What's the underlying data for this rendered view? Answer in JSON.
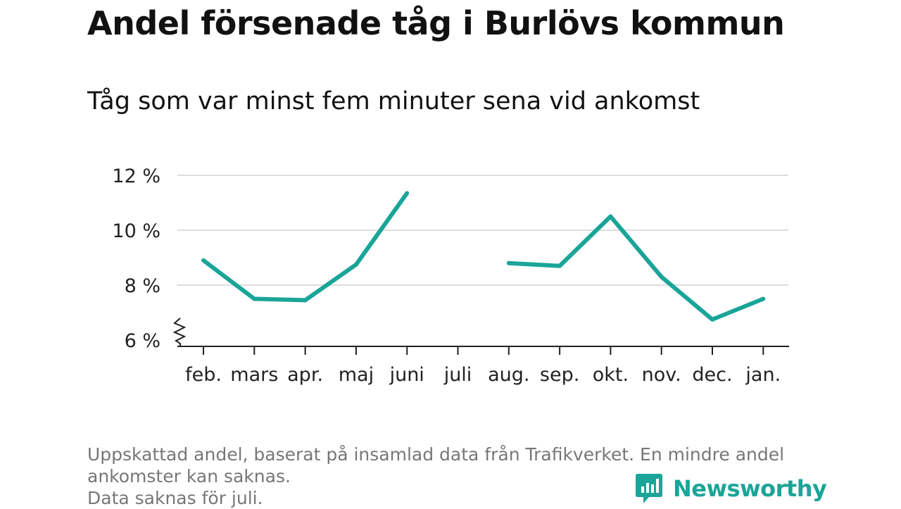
{
  "title": "Andel försenade tåg i Burlövs kommun",
  "subtitle": "Tåg som var minst fem minuter sena vid ankomst",
  "footnote": {
    "line1": "Uppskattad andel, baserat på insamlad data från Trafikverket. En mindre andel",
    "line2": "ankomster kan saknas.",
    "line3": "Data saknas för juli."
  },
  "logo": {
    "text": "Newsworthy",
    "icon": "newsworthy-chart-bubble-icon"
  },
  "colors": {
    "line": "#1aa598",
    "grid": "#dddddd",
    "axis": "#222222"
  },
  "chart_data": {
    "type": "line",
    "categories": [
      "feb.",
      "mars",
      "apr.",
      "maj",
      "juni",
      "juli",
      "aug.",
      "sep.",
      "okt.",
      "nov.",
      "dec.",
      "jan."
    ],
    "series": [
      {
        "values": [
          8.9,
          7.5,
          7.45,
          8.75,
          11.35,
          null,
          8.8,
          8.7,
          10.5,
          8.3,
          6.75,
          7.5
        ]
      }
    ],
    "y_ticks": [
      6,
      8,
      10,
      12
    ],
    "y_tick_labels": [
      "6 %",
      "8 %",
      "10 %",
      "12 %"
    ],
    "ylim": [
      6,
      12
    ],
    "y_axis_break": true,
    "grid": true,
    "xlabel": "",
    "ylabel": ""
  }
}
